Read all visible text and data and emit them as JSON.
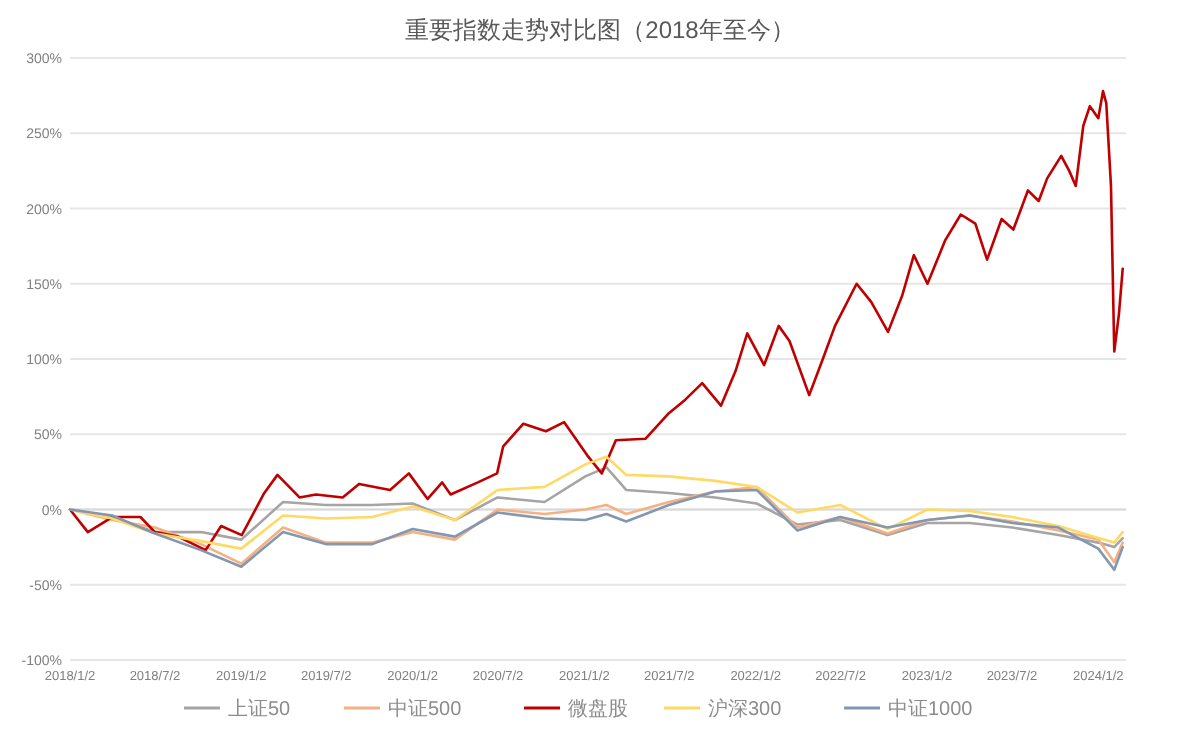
{
  "chart_data": {
    "type": "line",
    "title": "重要指数走势对比图（2018年至今）",
    "x": [
      "2018-01-02",
      "2018-04-02",
      "2018-07-02",
      "2018-10-08",
      "2019-01-02",
      "2019-04-01",
      "2019-07-01",
      "2019-10-08",
      "2020-01-02",
      "2020-04-01",
      "2020-07-01",
      "2020-10-09",
      "2021-01-04",
      "2021-02-18",
      "2021-04-01",
      "2021-07-01",
      "2021-10-08",
      "2022-01-04",
      "2022-04-01",
      "2022-07-01",
      "2022-10-10",
      "2023-01-03",
      "2023-04-03",
      "2023-07-03",
      "2023-10-09",
      "2024-01-02",
      "2024-02-05",
      "2024-02-23"
    ],
    "series": [
      {
        "name": "上证50",
        "color": "#a5a5a5",
        "values": [
          0,
          -5,
          -15,
          -15,
          -20,
          5,
          3,
          3,
          4,
          -7,
          8,
          5,
          22,
          28,
          13,
          11,
          8,
          4,
          -10,
          -7,
          -17,
          -9,
          -9,
          -12,
          -17,
          -22,
          -25,
          -19
        ]
      },
      {
        "name": "中证500",
        "color": "#f4b183",
        "values": [
          0,
          -7,
          -12,
          -23,
          -36,
          -12,
          -22,
          -22,
          -15,
          -20,
          0,
          -3,
          0,
          3,
          -3,
          5,
          12,
          15,
          -12,
          -5,
          -16,
          -7,
          -4,
          -8,
          -14,
          -20,
          -35,
          -22
        ]
      },
      {
        "name": "微盘股",
        "color": "#c00000",
        "x": [
          "2018-01-02",
          "2018-02-09",
          "2018-04-02",
          "2018-06-01",
          "2018-07-02",
          "2018-08-20",
          "2018-10-18",
          "2018-11-20",
          "2019-01-03",
          "2019-02-20",
          "2019-03-20",
          "2019-05-06",
          "2019-06-10",
          "2019-08-06",
          "2019-09-10",
          "2019-11-15",
          "2019-12-25",
          "2020-02-03",
          "2020-03-05",
          "2020-03-23",
          "2020-05-20",
          "2020-06-30",
          "2020-07-13",
          "2020-08-25",
          "2020-10-12",
          "2020-11-20",
          "2021-01-08",
          "2021-02-08",
          "2021-03-10",
          "2021-05-12",
          "2021-07-01",
          "2021-08-05",
          "2021-09-10",
          "2021-10-20",
          "2021-11-20",
          "2021-12-15",
          "2022-01-20",
          "2022-02-20",
          "2022-03-15",
          "2022-04-26",
          "2022-05-25",
          "2022-06-20",
          "2022-08-05",
          "2022-09-05",
          "2022-10-11",
          "2022-11-10",
          "2022-12-05",
          "2023-01-03",
          "2023-02-10",
          "2023-03-15",
          "2023-04-15",
          "2023-05-10",
          "2023-06-10",
          "2023-07-05",
          "2023-08-05",
          "2023-08-28",
          "2023-09-15",
          "2023-10-15",
          "2023-11-01",
          "2023-11-15",
          "2023-12-01",
          "2023-12-15",
          "2024-01-02",
          "2024-01-12",
          "2024-01-19",
          "2024-01-29",
          "2024-02-05",
          "2024-02-15",
          "2024-02-23"
        ],
        "values": [
          0,
          -15,
          -5,
          -5,
          -15,
          -18,
          -27,
          -11,
          -17,
          11,
          23,
          8,
          10,
          8,
          17,
          13,
          24,
          7,
          18,
          10,
          18,
          24,
          42,
          57,
          52,
          58,
          36,
          24,
          46,
          47,
          64,
          73,
          84,
          69,
          92,
          117,
          96,
          122,
          112,
          76,
          100,
          122,
          150,
          138,
          118,
          142,
          169,
          150,
          179,
          196,
          190,
          166,
          193,
          186,
          212,
          205,
          220,
          235,
          225,
          215,
          255,
          268,
          260,
          278,
          270,
          215,
          105,
          130,
          160
        ]
      },
      {
        "name": "沪深300",
        "color": "#ffd966",
        "values": [
          0,
          -6,
          -16,
          -21,
          -26,
          -4,
          -6,
          -5,
          2,
          -7,
          13,
          15,
          30,
          35,
          23,
          22,
          19,
          15,
          -2,
          3,
          -13,
          0,
          -1,
          -5,
          -11,
          -19,
          -22,
          -15
        ]
      },
      {
        "name": "中证1000",
        "color": "#8497b0",
        "values": [
          0,
          -4,
          -16,
          -27,
          -38,
          -15,
          -23,
          -23,
          -13,
          -18,
          -2,
          -6,
          -7,
          -3,
          -8,
          3,
          12,
          13,
          -14,
          -5,
          -12,
          -7,
          -4,
          -9,
          -12,
          -26,
          -40,
          -25
        ]
      }
    ],
    "xlim": [
      "2018-01-02",
      "2024-03-01"
    ],
    "xticks": [
      {
        "value": "2018-01-02",
        "label": "2018/1/2"
      },
      {
        "value": "2018-07-02",
        "label": "2018/7/2"
      },
      {
        "value": "2019-01-02",
        "label": "2019/1/2"
      },
      {
        "value": "2019-07-02",
        "label": "2019/7/2"
      },
      {
        "value": "2020-01-02",
        "label": "2020/1/2"
      },
      {
        "value": "2020-07-02",
        "label": "2020/7/2"
      },
      {
        "value": "2021-01-02",
        "label": "2021/1/2"
      },
      {
        "value": "2021-07-02",
        "label": "2021/7/2"
      },
      {
        "value": "2022-01-02",
        "label": "2022/1/2"
      },
      {
        "value": "2022-07-02",
        "label": "2022/7/2"
      },
      {
        "value": "2023-01-02",
        "label": "2023/1/2"
      },
      {
        "value": "2023-07-02",
        "label": "2023/7/2"
      },
      {
        "value": "2024-01-02",
        "label": "2024/1/2"
      }
    ],
    "ylim": [
      -100,
      300
    ],
    "yticks": [
      {
        "value": -100,
        "label": "-100%"
      },
      {
        "value": -50,
        "label": "-50%"
      },
      {
        "value": 0,
        "label": "0%"
      },
      {
        "value": 50,
        "label": "50%"
      },
      {
        "value": 100,
        "label": "100%"
      },
      {
        "value": 150,
        "label": "150%"
      },
      {
        "value": 200,
        "label": "200%"
      },
      {
        "value": 250,
        "label": "250%"
      },
      {
        "value": 300,
        "label": "300%"
      }
    ],
    "grid": "y",
    "legend": "bottom"
  }
}
